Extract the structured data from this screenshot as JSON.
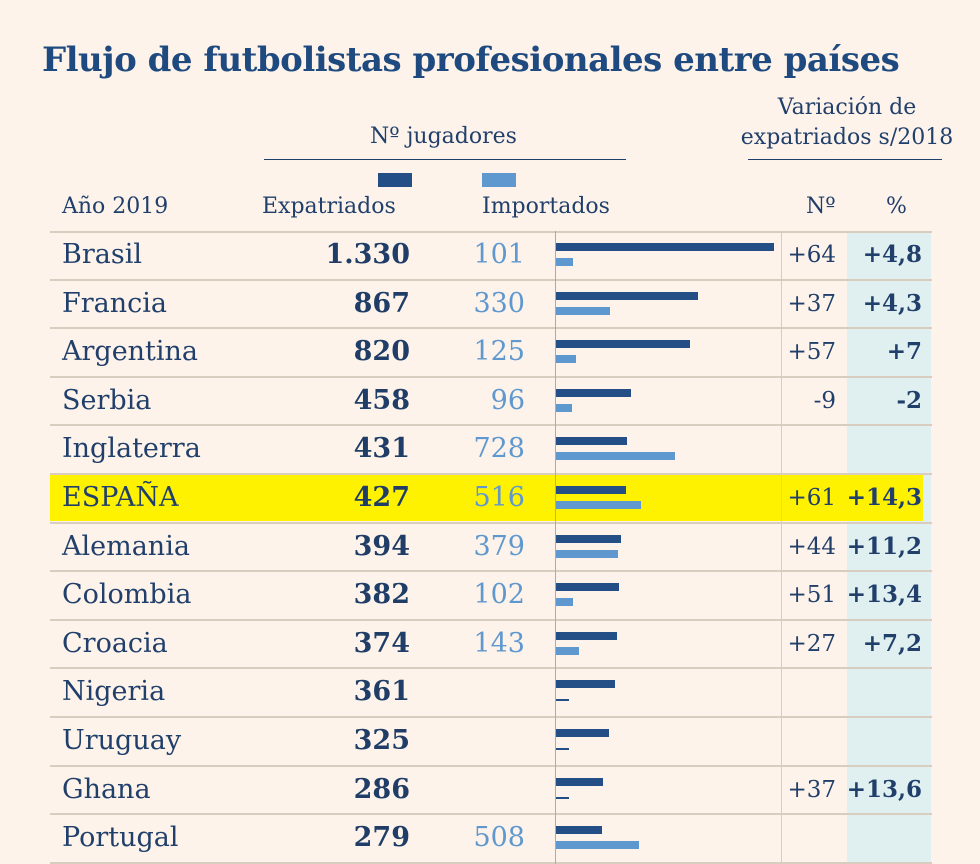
{
  "title": "Flujo de futbolistas profesionales entre países",
  "header": {
    "players_group": "Nº jugadores",
    "variation_group_line1": "Variación de",
    "variation_group_line2": "expatriados s/2018",
    "year_label": "Año 2019",
    "expatriados": "Expatriados",
    "importados": "Importados",
    "num": "Nº",
    "pct": "%"
  },
  "colors": {
    "expatriados": "#234e86",
    "importados": "#5f98cf",
    "highlight": "#fff200",
    "pct_band": "#e0f0f0",
    "background": "#fdf3ea"
  },
  "chart_data": {
    "type": "bar",
    "orientation": "horizontal",
    "title": "Flujo de futbolistas profesionales entre países",
    "categories": [
      "Brasil",
      "Francia",
      "Argentina",
      "Serbia",
      "Inglaterra",
      "ESPAÑA",
      "Alemania",
      "Colombia",
      "Croacia",
      "Nigeria",
      "Uruguay",
      "Ghana",
      "Portugal"
    ],
    "series": [
      {
        "name": "Expatriados",
        "values": [
          1330,
          867,
          820,
          458,
          431,
          427,
          394,
          382,
          374,
          361,
          325,
          286,
          279
        ]
      },
      {
        "name": "Importados",
        "values": [
          101,
          330,
          125,
          96,
          728,
          516,
          379,
          102,
          143,
          null,
          null,
          null,
          508
        ]
      }
    ],
    "xlim": [
      0,
      1330
    ],
    "highlighted_category": "ESPAÑA",
    "rows": [
      {
        "country": "Brasil",
        "exp": "1.330",
        "imp": "101",
        "var_n": "+64",
        "var_pct": "+4,8"
      },
      {
        "country": "Francia",
        "exp": "867",
        "imp": "330",
        "var_n": "+37",
        "var_pct": "+4,3"
      },
      {
        "country": "Argentina",
        "exp": "820",
        "imp": "125",
        "var_n": "+57",
        "var_pct": "+7"
      },
      {
        "country": "Serbia",
        "exp": "458",
        "imp": "96",
        "var_n": "-9",
        "var_pct": "-2"
      },
      {
        "country": "Inglaterra",
        "exp": "431",
        "imp": "728",
        "var_n": "",
        "var_pct": ""
      },
      {
        "country": "ESPAÑA",
        "exp": "427",
        "imp": "516",
        "var_n": "+61",
        "var_pct": "+14,3"
      },
      {
        "country": "Alemania",
        "exp": "394",
        "imp": "379",
        "var_n": "+44",
        "var_pct": "+11,2"
      },
      {
        "country": "Colombia",
        "exp": "382",
        "imp": "102",
        "var_n": "+51",
        "var_pct": "+13,4"
      },
      {
        "country": "Croacia",
        "exp": "374",
        "imp": "143",
        "var_n": "+27",
        "var_pct": "+7,2"
      },
      {
        "country": "Nigeria",
        "exp": "361",
        "imp": "",
        "var_n": "",
        "var_pct": ""
      },
      {
        "country": "Uruguay",
        "exp": "325",
        "imp": "",
        "var_n": "",
        "var_pct": ""
      },
      {
        "country": "Ghana",
        "exp": "286",
        "imp": "",
        "var_n": "+37",
        "var_pct": "+13,6"
      },
      {
        "country": "Portugal",
        "exp": "279",
        "imp": "508",
        "var_n": "",
        "var_pct": ""
      }
    ]
  }
}
